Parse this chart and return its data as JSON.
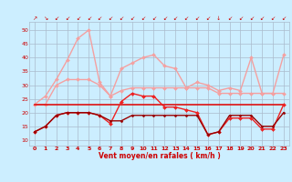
{
  "background_color": "#cceeff",
  "grid_color": "#aabbcc",
  "xlabel": "Vent moyen/en rafales ( km/h )",
  "xlabel_color": "#cc0000",
  "tick_label_color": "#cc0000",
  "ylabel_ticks": [
    10,
    15,
    20,
    25,
    30,
    35,
    40,
    45,
    50
  ],
  "xlim": [
    -0.5,
    23.5
  ],
  "ylim": [
    8,
    53
  ],
  "x": [
    0,
    1,
    2,
    3,
    4,
    5,
    6,
    7,
    8,
    9,
    10,
    11,
    12,
    13,
    14,
    15,
    16,
    17,
    18,
    19,
    20,
    21,
    22,
    23
  ],
  "lines": [
    {
      "y": [
        23,
        26,
        32,
        39,
        47,
        50,
        31,
        26,
        36,
        38,
        40,
        41,
        37,
        36,
        29,
        31,
        30,
        28,
        29,
        28,
        40,
        27,
        27,
        41
      ],
      "color": "#f4a0a0",
      "lw": 1.0,
      "marker": "D",
      "ms": 2.0,
      "zorder": 2
    },
    {
      "y": [
        23,
        23,
        30,
        32,
        32,
        32,
        30,
        26,
        28,
        29,
        29,
        29,
        29,
        29,
        29,
        29,
        29,
        27,
        27,
        27,
        27,
        27,
        27,
        27
      ],
      "color": "#f4a0a0",
      "lw": 1.0,
      "marker": "D",
      "ms": 2.0,
      "zorder": 2
    },
    {
      "y": [
        23,
        23,
        23,
        23,
        23,
        23,
        23,
        23,
        23,
        23,
        23,
        23,
        23,
        23,
        23,
        23,
        23,
        23,
        23,
        23,
        23,
        23,
        23,
        23
      ],
      "color": "#dd1111",
      "lw": 1.2,
      "marker": null,
      "ms": 0,
      "zorder": 4
    },
    {
      "y": [
        13,
        15,
        19,
        20,
        20,
        20,
        19,
        16,
        24,
        27,
        26,
        26,
        22,
        22,
        21,
        20,
        12,
        13,
        18,
        18,
        18,
        14,
        14,
        23
      ],
      "color": "#ee2222",
      "lw": 1.0,
      "marker": "D",
      "ms": 2.0,
      "zorder": 5
    },
    {
      "y": [
        13,
        15,
        19,
        20,
        20,
        20,
        19,
        17,
        17,
        19,
        19,
        19,
        19,
        19,
        19,
        19,
        12,
        13,
        19,
        19,
        19,
        15,
        15,
        20
      ],
      "color": "#990000",
      "lw": 1.0,
      "marker": "D",
      "ms": 1.5,
      "zorder": 6
    }
  ],
  "wind_arrows": [
    "↗",
    "↘",
    "↙",
    "↙",
    "↙",
    "↙",
    "↙",
    "↙",
    "↙",
    "↙",
    "↙",
    "↙",
    "↙",
    "↙",
    "↙",
    "↙",
    "↙",
    "↓",
    "↙",
    "↙",
    "↙",
    "↙",
    "↙",
    "↙"
  ]
}
